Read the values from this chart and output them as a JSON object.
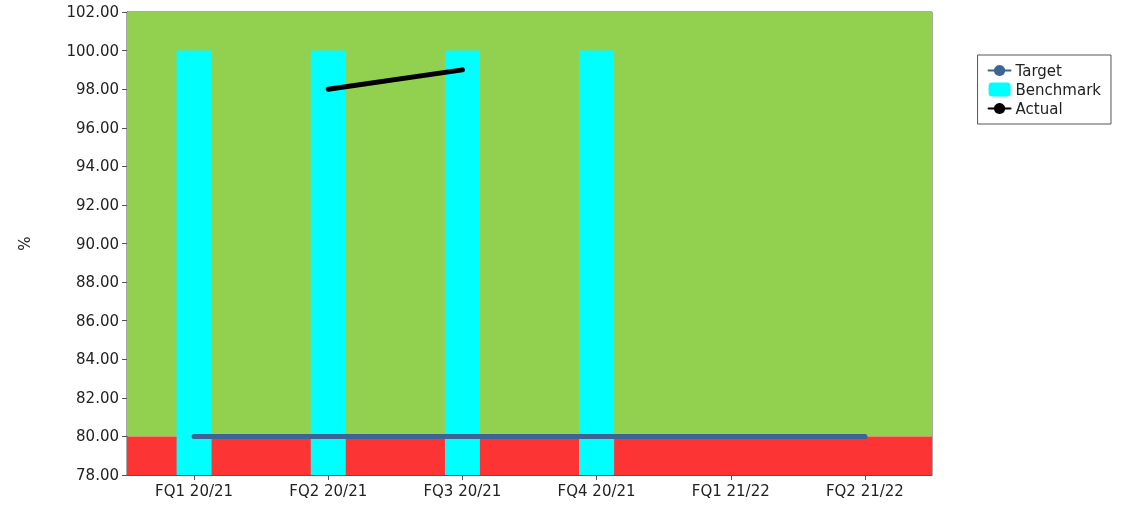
{
  "chart_data": {
    "type": "bar",
    "ylabel": "%",
    "categories": [
      "FQ1 20/21",
      "FQ2 20/21",
      "FQ3 20/21",
      "FQ4 20/21",
      "FQ1 21/22",
      "FQ2 21/22"
    ],
    "series": [
      {
        "name": "Target",
        "type": "line",
        "color": "#3d6494",
        "values": [
          80,
          80,
          80,
          80,
          80,
          80
        ]
      },
      {
        "name": "Benchmark",
        "color": "#00ffff",
        "values": [
          100,
          100,
          100,
          100,
          null,
          null
        ]
      },
      {
        "name": "Actual",
        "type": "line",
        "color": "#000000",
        "values": [
          null,
          98,
          99,
          null,
          null,
          null
        ]
      }
    ],
    "ylim": [
      78,
      102
    ],
    "yticks": [
      {
        "value": 78,
        "label": "78.00"
      },
      {
        "value": 80,
        "label": "80.00"
      },
      {
        "value": 82,
        "label": "82.00"
      },
      {
        "value": 84,
        "label": "84.00"
      },
      {
        "value": 86,
        "label": "86.00"
      },
      {
        "value": 88,
        "label": "88.00"
      },
      {
        "value": 90,
        "label": "90.00"
      },
      {
        "value": 92,
        "label": "92.00"
      },
      {
        "value": 94,
        "label": "94.00"
      },
      {
        "value": 96,
        "label": "96.00"
      },
      {
        "value": 98,
        "label": "98.00"
      },
      {
        "value": 100,
        "label": "100.00"
      },
      {
        "value": 102,
        "label": "102.00"
      }
    ],
    "bands": [
      {
        "axis": "y",
        "from": 80,
        "to": 102,
        "color": "#92d050"
      },
      {
        "axis": "y",
        "from": 78,
        "to": 80,
        "color": "#fc3434"
      }
    ],
    "grid": false,
    "legend": "top right",
    "marker": "none"
  }
}
